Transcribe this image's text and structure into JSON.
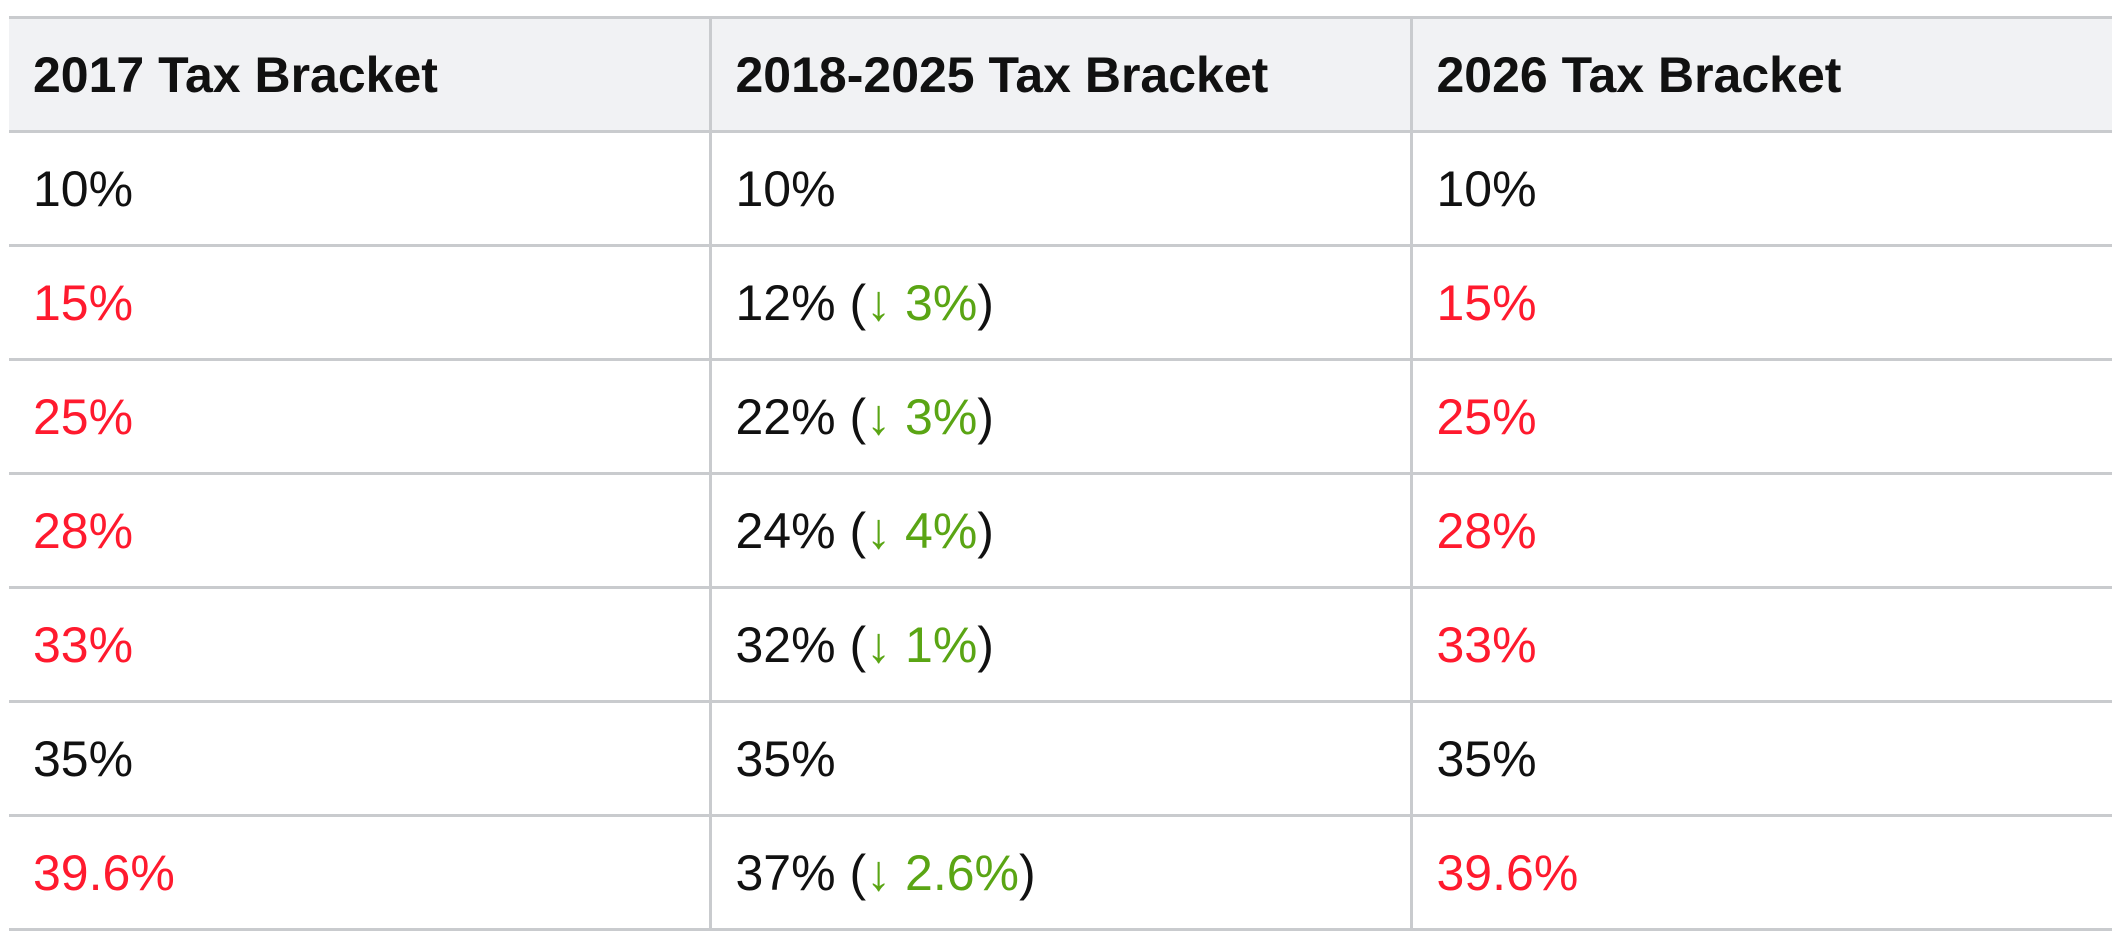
{
  "colors": {
    "increase_red": "#ff1a2e",
    "decrease_green": "#5aa514",
    "header_bg": "#f1f2f4",
    "border": "#c9cbce"
  },
  "table": {
    "headers": [
      "2017 Tax Bracket",
      "2018-2025 Tax Bracket",
      "2026 Tax Bracket"
    ],
    "rows": [
      {
        "y2017": "10%",
        "y2018": "10%",
        "y2018_change": "",
        "y2026": "10%"
      },
      {
        "y2017": "15%",
        "y2018": "12%",
        "y2018_change": "↓ 3%",
        "y2026": "15%"
      },
      {
        "y2017": "25%",
        "y2018": "22%",
        "y2018_change": "↓ 3%",
        "y2026": "25%"
      },
      {
        "y2017": "28%",
        "y2018": "24%",
        "y2018_change": "↓ 4%",
        "y2026": "28%"
      },
      {
        "y2017": "33%",
        "y2018": "32%",
        "y2018_change": "↓ 1%",
        "y2026": "33%"
      },
      {
        "y2017": "35%",
        "y2018": "35%",
        "y2018_change": "",
        "y2026": "35%"
      },
      {
        "y2017": "39.6%",
        "y2018": "37%",
        "y2018_change": "↓ 2.6%",
        "y2026": "39.6%"
      }
    ]
  }
}
